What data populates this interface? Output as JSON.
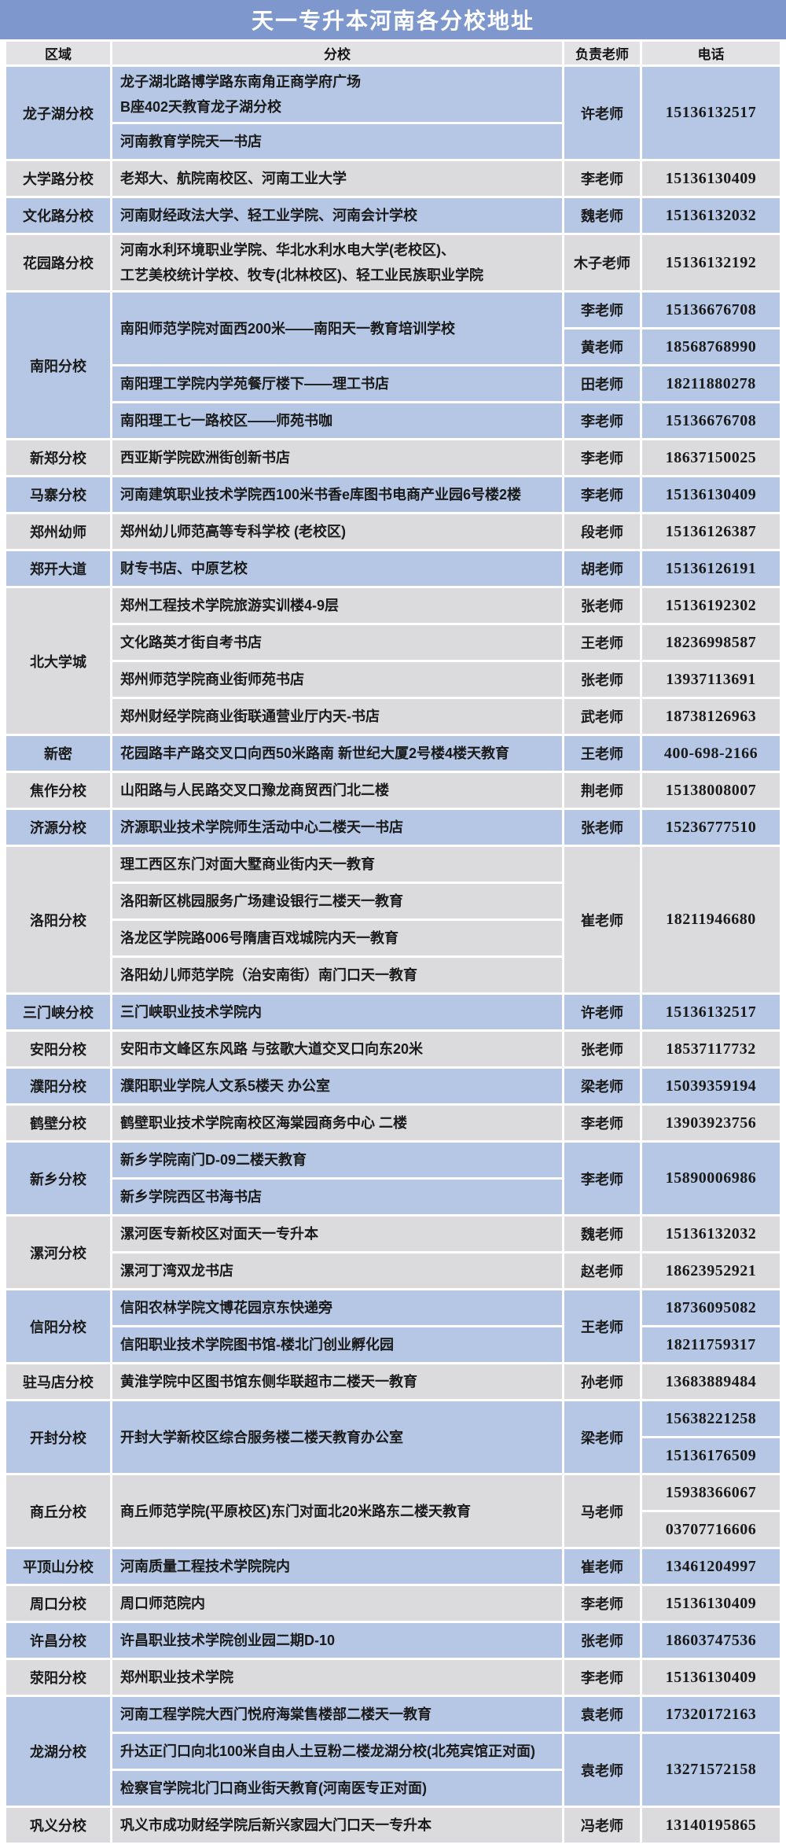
{
  "title": "天一专升本河南各分校地址",
  "columns": {
    "region": "区域",
    "branch": "分校",
    "teacher": "负责老师",
    "phone": "电话"
  },
  "colors": {
    "title_bar_bg": "#7e98cd",
    "title_text": "#ffffff",
    "header_bg": "#e2e2e5",
    "row_blue": "#b5c7e5",
    "row_gray": "#dbdbde",
    "grid_lines": "#ffffff",
    "body_text": "#1a1a1a"
  },
  "groups": [
    {
      "region": "龙子湖分校",
      "tone": "blue",
      "rows": [
        {
          "branch": {
            "text": "龙子湖北路博学路东南角正商学府广场\nB座402天教育龙子湖分校",
            "span": 1
          },
          "teacher": {
            "text": "许老师",
            "span": 2
          },
          "phone": {
            "text": "15136132517",
            "span": 2
          }
        },
        {
          "branch": {
            "text": "河南教育学院天一书店",
            "span": 1
          }
        }
      ]
    },
    {
      "region": "大学路分校",
      "tone": "gray",
      "rows": [
        {
          "branch": {
            "text": "老郑大、航院南校区、河南工业大学",
            "span": 1
          },
          "teacher": {
            "text": "李老师",
            "span": 1
          },
          "phone": {
            "text": "15136130409",
            "span": 1
          }
        }
      ]
    },
    {
      "region": "文化路分校",
      "tone": "blue",
      "rows": [
        {
          "branch": {
            "text": "河南财经政法大学、轻工业学院、河南会计学校",
            "span": 1
          },
          "teacher": {
            "text": "魏老师",
            "span": 1
          },
          "phone": {
            "text": "15136132032",
            "span": 1
          }
        }
      ]
    },
    {
      "region": "花园路分校",
      "tone": "gray",
      "rows": [
        {
          "branch": {
            "text": "河南水利环境职业学院、华北水利水电大学(老校区)、\n工艺美校统计学校、牧专(北林校区)、轻工业民族职业学院",
            "span": 1
          },
          "teacher": {
            "text": "木子老师",
            "span": 1
          },
          "phone": {
            "text": "15136132192",
            "span": 1
          }
        }
      ]
    },
    {
      "region": "南阳分校",
      "tone": "blue",
      "rows": [
        {
          "branch": {
            "text": "南阳师范学院对面西200米——南阳天一教育培训学校",
            "span": 2
          },
          "teacher": {
            "text": "李老师",
            "span": 1
          },
          "phone": {
            "text": "15136676708",
            "span": 1
          }
        },
        {
          "teacher": {
            "text": "黄老师",
            "span": 1
          },
          "phone": {
            "text": "18568768990",
            "span": 1
          }
        },
        {
          "branch": {
            "text": "南阳理工学院内学苑餐厅楼下——理工书店",
            "span": 1
          },
          "teacher": {
            "text": "田老师",
            "span": 1
          },
          "phone": {
            "text": "18211880278",
            "span": 1
          }
        },
        {
          "branch": {
            "text": "南阳理工七一路校区——师苑书咖",
            "span": 1
          },
          "teacher": {
            "text": "李老师",
            "span": 1
          },
          "phone": {
            "text": "15136676708",
            "span": 1
          }
        }
      ]
    },
    {
      "region": "新郑分校",
      "tone": "gray",
      "rows": [
        {
          "branch": {
            "text": "西亚斯学院欧洲街创新书店",
            "span": 1
          },
          "teacher": {
            "text": "李老师",
            "span": 1
          },
          "phone": {
            "text": "18637150025",
            "span": 1
          }
        }
      ]
    },
    {
      "region": "马寨分校",
      "tone": "blue",
      "rows": [
        {
          "branch": {
            "text": "河南建筑职业技术学院西100米书香e库图书电商产业园6号楼2楼",
            "span": 1
          },
          "teacher": {
            "text": "李老师",
            "span": 1
          },
          "phone": {
            "text": "15136130409",
            "span": 1
          }
        }
      ]
    },
    {
      "region": "郑州幼师",
      "tone": "gray",
      "rows": [
        {
          "branch": {
            "text": "郑州幼儿师范高等专科学校 (老校区)",
            "span": 1
          },
          "teacher": {
            "text": "段老师",
            "span": 1
          },
          "phone": {
            "text": "15136126387",
            "span": 1
          }
        }
      ]
    },
    {
      "region": "郑开大道",
      "tone": "blue",
      "rows": [
        {
          "branch": {
            "text": "财专书店、中原艺校",
            "span": 1
          },
          "teacher": {
            "text": "胡老师",
            "span": 1
          },
          "phone": {
            "text": "15136126191",
            "span": 1
          }
        }
      ]
    },
    {
      "region": "北大学城",
      "tone": "gray",
      "rows": [
        {
          "branch": {
            "text": "郑州工程技术学院旅游实训楼4-9层",
            "span": 1
          },
          "teacher": {
            "text": "张老师",
            "span": 1
          },
          "phone": {
            "text": "15136192302",
            "span": 1
          }
        },
        {
          "branch": {
            "text": "文化路英才街自考书店",
            "span": 1
          },
          "teacher": {
            "text": "王老师",
            "span": 1
          },
          "phone": {
            "text": "18236998587",
            "span": 1
          }
        },
        {
          "branch": {
            "text": "郑州师范学院商业街师苑书店",
            "span": 1
          },
          "teacher": {
            "text": "张老师",
            "span": 1
          },
          "phone": {
            "text": "13937113691",
            "span": 1
          }
        },
        {
          "branch": {
            "text": "郑州财经学院商业街联通营业厅内天-书店",
            "span": 1
          },
          "teacher": {
            "text": "武老师",
            "span": 1
          },
          "phone": {
            "text": "18738126963",
            "span": 1
          }
        }
      ]
    },
    {
      "region": "新密",
      "tone": "blue",
      "rows": [
        {
          "branch": {
            "text": "花园路丰产路交叉口向西50米路南 新世纪大厦2号楼4楼天教育",
            "span": 1
          },
          "teacher": {
            "text": "王老师",
            "span": 1
          },
          "phone": {
            "text": "400-698-2166",
            "span": 1
          }
        }
      ]
    },
    {
      "region": "焦作分校",
      "tone": "gray",
      "rows": [
        {
          "branch": {
            "text": "山阳路与人民路交叉口豫龙商贸西门北二楼",
            "span": 1
          },
          "teacher": {
            "text": "荆老师",
            "span": 1
          },
          "phone": {
            "text": "15138008007",
            "span": 1
          }
        }
      ]
    },
    {
      "region": "济源分校",
      "tone": "blue",
      "rows": [
        {
          "branch": {
            "text": "济源职业技术学院师生活动中心二楼天一书店",
            "span": 1
          },
          "teacher": {
            "text": "张老师",
            "span": 1
          },
          "phone": {
            "text": "15236777510",
            "span": 1
          }
        }
      ]
    },
    {
      "region": "洛阳分校",
      "tone": "gray",
      "rows": [
        {
          "branch": {
            "text": "理工西区东门对面大墅商业街内天一教育",
            "span": 1
          },
          "teacher": {
            "text": "崔老师",
            "span": 4
          },
          "phone": {
            "text": "18211946680",
            "span": 4
          }
        },
        {
          "branch": {
            "text": "洛阳新区桃园服务广场建设银行二楼天一教育",
            "span": 1
          }
        },
        {
          "branch": {
            "text": "洛龙区学院路006号隋唐百戏城院内天一教育",
            "span": 1
          }
        },
        {
          "branch": {
            "text": "洛阳幼儿师范学院（治安南街）南门口天一教育",
            "span": 1
          }
        }
      ]
    },
    {
      "region": "三门峡分校",
      "tone": "blue",
      "rows": [
        {
          "branch": {
            "text": "三门峡职业技术学院内",
            "span": 1
          },
          "teacher": {
            "text": "许老师",
            "span": 1
          },
          "phone": {
            "text": "15136132517",
            "span": 1
          }
        }
      ]
    },
    {
      "region": "安阳分校",
      "tone": "gray",
      "rows": [
        {
          "branch": {
            "text": "安阳市文峰区东风路 与弦歌大道交叉口向东20米",
            "span": 1
          },
          "teacher": {
            "text": "张老师",
            "span": 1
          },
          "phone": {
            "text": "18537117732",
            "span": 1
          }
        }
      ]
    },
    {
      "region": "濮阳分校",
      "tone": "blue",
      "rows": [
        {
          "branch": {
            "text": "濮阳职业学院人文系5楼天 办公室",
            "span": 1
          },
          "teacher": {
            "text": "梁老师",
            "span": 1
          },
          "phone": {
            "text": "15039359194",
            "span": 1
          }
        }
      ]
    },
    {
      "region": "鹤壁分校",
      "tone": "gray",
      "rows": [
        {
          "branch": {
            "text": "鹤壁职业技术学院南校区海棠园商务中心 二楼",
            "span": 1
          },
          "teacher": {
            "text": "李老师",
            "span": 1
          },
          "phone": {
            "text": "13903923756",
            "span": 1
          }
        }
      ]
    },
    {
      "region": "新乡分校",
      "tone": "blue",
      "rows": [
        {
          "branch": {
            "text": "新乡学院南门D-09二楼天教育",
            "span": 1
          },
          "teacher": {
            "text": "李老师",
            "span": 2
          },
          "phone": {
            "text": "15890006986",
            "span": 2
          }
        },
        {
          "branch": {
            "text": "新乡学院西区书海书店",
            "span": 1
          }
        }
      ]
    },
    {
      "region": "漯河分校",
      "tone": "gray",
      "rows": [
        {
          "branch": {
            "text": "漯河医专新校区对面天一专升本",
            "span": 1
          },
          "teacher": {
            "text": "魏老师",
            "span": 1
          },
          "phone": {
            "text": "15136132032",
            "span": 1
          }
        },
        {
          "branch": {
            "text": "漯河丁湾双龙书店",
            "span": 1
          },
          "teacher": {
            "text": "赵老师",
            "span": 1
          },
          "phone": {
            "text": "18623952921",
            "span": 1
          }
        }
      ]
    },
    {
      "region": "信阳分校",
      "tone": "blue",
      "rows": [
        {
          "branch": {
            "text": "信阳农林学院文博花园京东快递旁",
            "span": 1
          },
          "teacher": {
            "text": "王老师",
            "span": 2
          },
          "phone": {
            "text": "18736095082",
            "span": 1
          }
        },
        {
          "branch": {
            "text": "信阳职业技术学院图书馆-楼北门创业孵化园",
            "span": 1
          },
          "phone": {
            "text": "18211759317",
            "span": 1
          }
        }
      ]
    },
    {
      "region": "驻马店分校",
      "tone": "gray",
      "rows": [
        {
          "branch": {
            "text": "黄淮学院中区图书馆东侧华联超市二楼天一教育",
            "span": 1
          },
          "teacher": {
            "text": "孙老师",
            "span": 1
          },
          "phone": {
            "text": "13683889484",
            "span": 1
          }
        }
      ]
    },
    {
      "region": "开封分校",
      "tone": "blue",
      "rows": [
        {
          "branch": {
            "text": "开封大学新校区综合服务楼二楼天教育办公室",
            "span": 2
          },
          "teacher": {
            "text": "梁老师",
            "span": 2
          },
          "phone": {
            "text": "15638221258",
            "span": 1
          }
        },
        {
          "phone": {
            "text": "15136176509",
            "span": 1
          }
        }
      ]
    },
    {
      "region": "商丘分校",
      "tone": "gray",
      "rows": [
        {
          "branch": {
            "text": "商丘师范学院(平原校区)东门对面北20米路东二楼天教育",
            "span": 2
          },
          "teacher": {
            "text": "马老师",
            "span": 2
          },
          "phone": {
            "text": "15938366067",
            "span": 1
          }
        },
        {
          "phone": {
            "text": "03707716606",
            "span": 1
          }
        }
      ]
    },
    {
      "region": "平顶山分校",
      "tone": "blue",
      "rows": [
        {
          "branch": {
            "text": "河南质量工程技术学院院内",
            "span": 1
          },
          "teacher": {
            "text": "崔老师",
            "span": 1
          },
          "phone": {
            "text": "13461204997",
            "span": 1
          }
        }
      ]
    },
    {
      "region": "周口分校",
      "tone": "gray",
      "rows": [
        {
          "branch": {
            "text": "周口师范院内",
            "span": 1
          },
          "teacher": {
            "text": "李老师",
            "span": 1
          },
          "phone": {
            "text": "15136130409",
            "span": 1
          }
        }
      ]
    },
    {
      "region": "许昌分校",
      "tone": "blue",
      "rows": [
        {
          "branch": {
            "text": "许昌职业技术学院创业园二期D-10",
            "span": 1
          },
          "teacher": {
            "text": "张老师",
            "span": 1
          },
          "phone": {
            "text": "18603747536",
            "span": 1
          }
        }
      ]
    },
    {
      "region": "荥阳分校",
      "tone": "gray",
      "rows": [
        {
          "branch": {
            "text": "郑州职业技术学院",
            "span": 1
          },
          "teacher": {
            "text": "李老师",
            "span": 1
          },
          "phone": {
            "text": "15136130409",
            "span": 1
          }
        }
      ]
    },
    {
      "region": "龙湖分校",
      "tone": "blue",
      "rows": [
        {
          "branch": {
            "text": "河南工程学院大西门悦府海棠售楼部二楼天一教育",
            "span": 1
          },
          "teacher": {
            "text": "袁老师",
            "span": 1
          },
          "phone": {
            "text": "17320172163",
            "span": 1
          }
        },
        {
          "branch": {
            "text": "升达正门口向北100米自由人土豆粉二楼龙湖分校(北苑宾馆正对面)",
            "span": 1
          },
          "teacher": {
            "text": "袁老师",
            "span": 2
          },
          "phone": {
            "text": "13271572158",
            "span": 2
          }
        },
        {
          "branch": {
            "text": "检察官学院北门口商业街天教育(河南医专正对面)",
            "span": 1
          }
        }
      ]
    },
    {
      "region": "巩义分校",
      "tone": "gray",
      "rows": [
        {
          "branch": {
            "text": "巩义市成功财经学院后新兴家园大门口天一专升本",
            "span": 1
          },
          "teacher": {
            "text": "冯老师",
            "span": 1
          },
          "phone": {
            "text": "13140195865",
            "span": 1
          }
        }
      ]
    }
  ]
}
